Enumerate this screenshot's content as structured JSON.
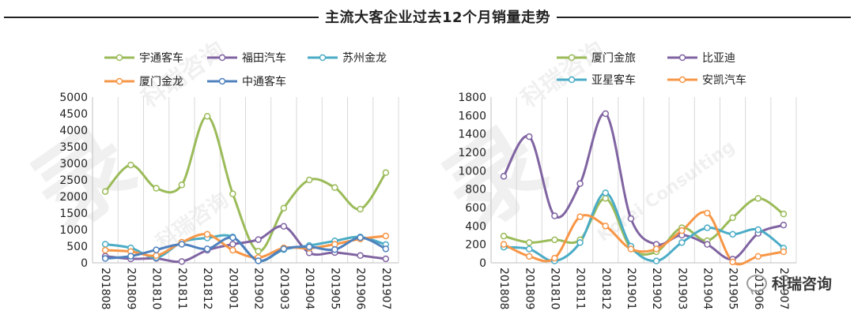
{
  "page": {
    "title": "主流大客企业过去12个月销量走势",
    "watermark_text": "科瑞咨询",
    "watermark_sub": "Korei Consulting"
  },
  "chart_data": [
    {
      "type": "line",
      "title": "",
      "categories": [
        "201808",
        "201809",
        "201810",
        "201811",
        "201812",
        "201901",
        "201902",
        "201903",
        "201904",
        "201905",
        "201906",
        "201907"
      ],
      "ylim": [
        0,
        5000
      ],
      "yticks": [
        0,
        500,
        1000,
        1500,
        2000,
        2500,
        3000,
        3500,
        4000,
        4500,
        5000
      ],
      "grid": "vertical",
      "legend_position": "top",
      "smooth": true,
      "series": [
        {
          "name": "宇通客车",
          "color": "#9BBB59",
          "values": [
            2150,
            2950,
            2250,
            2350,
            4420,
            2080,
            350,
            1650,
            2500,
            2270,
            1620,
            2720
          ]
        },
        {
          "name": "福田汽车",
          "color": "#8064A2",
          "values": [
            200,
            120,
            130,
            40,
            380,
            560,
            700,
            1100,
            300,
            310,
            220,
            120
          ]
        },
        {
          "name": "苏州金龙",
          "color": "#4BACC6",
          "values": [
            560,
            450,
            160,
            620,
            750,
            780,
            60,
            400,
            520,
            660,
            780,
            550
          ]
        },
        {
          "name": "厦门金龙",
          "color": "#F79646",
          "values": [
            380,
            340,
            220,
            620,
            860,
            380,
            160,
            450,
            440,
            560,
            720,
            810
          ]
        },
        {
          "name": "中通客车",
          "color": "#4F81BD",
          "values": [
            130,
            200,
            390,
            560,
            420,
            760,
            60,
            420,
            480,
            400,
            760,
            420
          ]
        }
      ]
    },
    {
      "type": "line",
      "title": "",
      "categories": [
        "201808",
        "201809",
        "201810",
        "201811",
        "201812",
        "201901",
        "201902",
        "201903",
        "201904",
        "201905",
        "201906",
        "201907"
      ],
      "ylim": [
        0,
        1800
      ],
      "yticks": [
        0,
        200,
        400,
        600,
        800,
        1000,
        1200,
        1400,
        1600,
        1800
      ],
      "grid": "vertical",
      "legend_position": "top",
      "smooth": true,
      "series": [
        {
          "name": "厦门金旅",
          "color": "#9BBB59",
          "values": [
            290,
            220,
            250,
            250,
            700,
            160,
            120,
            380,
            240,
            490,
            700,
            530
          ]
        },
        {
          "name": "比亚迪",
          "color": "#8064A2",
          "values": [
            940,
            1370,
            510,
            860,
            1620,
            480,
            200,
            300,
            200,
            40,
            320,
            410
          ]
        },
        {
          "name": "亚星客车",
          "color": "#4BACC6",
          "values": [
            170,
            150,
            20,
            220,
            760,
            180,
            20,
            220,
            380,
            310,
            360,
            160
          ]
        },
        {
          "name": "安凯汽车",
          "color": "#F79646",
          "values": [
            200,
            70,
            50,
            500,
            400,
            150,
            150,
            350,
            540,
            10,
            70,
            120
          ]
        }
      ]
    }
  ]
}
